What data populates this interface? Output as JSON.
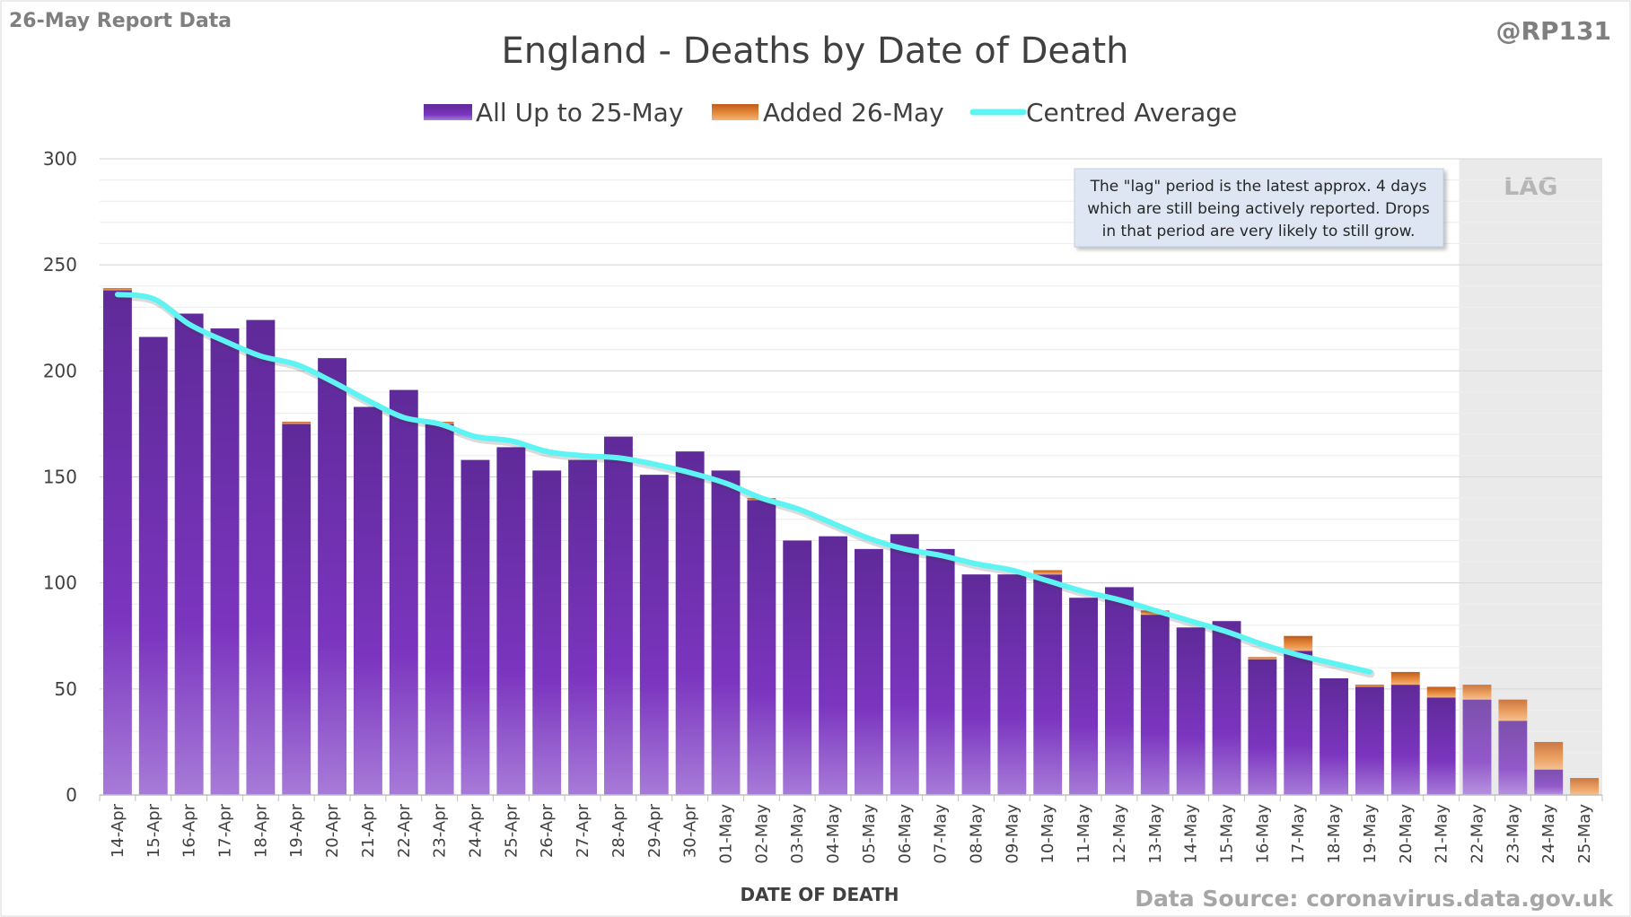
{
  "report_label": "26-May Report Data",
  "handle": "@RP131",
  "source": "Data Source: coronavirus.data.gov.uk",
  "colors": {
    "base_bar": "#7b35bf",
    "added_bar": "#e07c2c",
    "average_line": "#5ff4f4",
    "lag_shade": "#e6e6e6",
    "note_bg": "#dde6f2"
  },
  "chart_data": {
    "type": "bar",
    "title": "England - Deaths by Date of Death",
    "xlabel": "DATE OF DEATH",
    "ylabel": "",
    "ylim": [
      0,
      300
    ],
    "yticks": [
      0,
      50,
      100,
      150,
      200,
      250,
      300
    ],
    "legend_position": "top",
    "grid": true,
    "categories": [
      "14-Apr",
      "15-Apr",
      "16-Apr",
      "17-Apr",
      "18-Apr",
      "19-Apr",
      "20-Apr",
      "21-Apr",
      "22-Apr",
      "23-Apr",
      "24-Apr",
      "25-Apr",
      "26-Apr",
      "27-Apr",
      "28-Apr",
      "29-Apr",
      "30-Apr",
      "01-May",
      "02-May",
      "03-May",
      "04-May",
      "05-May",
      "06-May",
      "07-May",
      "08-May",
      "09-May",
      "10-May",
      "11-May",
      "12-May",
      "13-May",
      "14-May",
      "15-May",
      "16-May",
      "17-May",
      "18-May",
      "19-May",
      "20-May",
      "21-May",
      "22-May",
      "23-May",
      "24-May",
      "25-May"
    ],
    "series": [
      {
        "name": "All Up to 25-May",
        "kind": "bar",
        "values": [
          238,
          216,
          227,
          220,
          224,
          175,
          206,
          183,
          191,
          175,
          158,
          164,
          153,
          158,
          169,
          151,
          162,
          153,
          139,
          120,
          122,
          116,
          123,
          116,
          104,
          104,
          104,
          93,
          98,
          85,
          79,
          82,
          64,
          68,
          55,
          51,
          52,
          46,
          45,
          35,
          12,
          0
        ]
      },
      {
        "name": "Added 26-May",
        "kind": "bar",
        "values": [
          1,
          0,
          0,
          0,
          0,
          1,
          0,
          0,
          0,
          1,
          0,
          0,
          0,
          0,
          0,
          0,
          0,
          0,
          1,
          0,
          0,
          0,
          0,
          0,
          0,
          0,
          2,
          0,
          0,
          2,
          0,
          0,
          1,
          7,
          0,
          1,
          6,
          5,
          7,
          10,
          13,
          8
        ]
      },
      {
        "name": "Centred Average",
        "kind": "line",
        "values": [
          236,
          234,
          222,
          214,
          207,
          203,
          195,
          186,
          178,
          175,
          169,
          167,
          162,
          160,
          159,
          156,
          152,
          147,
          140,
          135,
          128,
          121,
          116,
          113,
          109,
          106,
          101,
          96,
          92,
          87,
          82,
          77,
          71,
          66,
          62,
          58,
          null,
          null,
          null,
          null,
          null,
          null
        ]
      }
    ],
    "lag": {
      "label": "LAG",
      "start_category": "22-May",
      "end_category": "25-May"
    },
    "annotation": {
      "lines": [
        "The \"lag\" period is the latest approx. 4 days",
        "which are still being actively reported.  Drops",
        "in that period are very likely to still grow."
      ]
    }
  }
}
